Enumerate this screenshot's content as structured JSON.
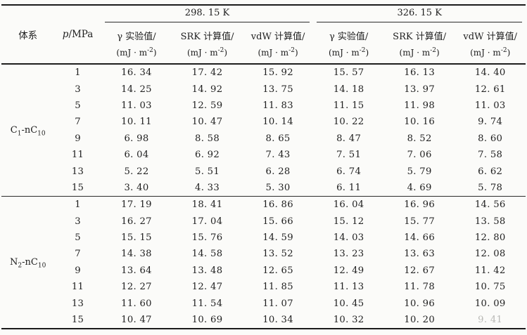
{
  "page": {
    "background": "#fbfbf9",
    "ink": "#1e1e1e",
    "faded_ink": "#b9b9b6"
  },
  "table": {
    "header": {
      "system": "体系",
      "pressure": {
        "symbol": "p",
        "unit": "/MPa"
      },
      "unit_line": {
        "pre": "(mJ · m",
        "sup": "-2",
        "post": ")"
      },
      "groups": [
        {
          "temp": "298. 15 K",
          "cols": [
            "γ 实验值/",
            "SRK 计算值/",
            "vdW 计算值/"
          ]
        },
        {
          "temp": "326. 15 K",
          "cols": [
            "γ 实验值/",
            "SRK 计算值/",
            "vdW 计算值/"
          ]
        }
      ]
    },
    "blocks": [
      {
        "system": {
          "b1": "C",
          "s1": "1",
          "b2": "-nC",
          "s2": "10"
        },
        "rows": [
          {
            "p": "1",
            "v": [
              "16. 34",
              "17. 42",
              "15. 92",
              "15. 57",
              "16. 13",
              "14. 40"
            ]
          },
          {
            "p": "3",
            "v": [
              "14. 25",
              "14. 92",
              "13. 75",
              "14. 18",
              "13. 97",
              "12. 61"
            ]
          },
          {
            "p": "5",
            "v": [
              "11. 03",
              "12. 59",
              "11. 83",
              "11. 15",
              "11. 98",
              "11. 03"
            ]
          },
          {
            "p": "7",
            "v": [
              "10. 11",
              "10. 47",
              "10. 14",
              "10. 22",
              "10. 16",
              "9. 74"
            ]
          },
          {
            "p": "9",
            "v": [
              "6. 98",
              "8. 58",
              "8. 65",
              "8. 47",
              "8. 52",
              "8. 60"
            ]
          },
          {
            "p": "11",
            "v": [
              "6. 04",
              "6. 92",
              "7. 43",
              "7. 51",
              "7. 06",
              "7. 58"
            ]
          },
          {
            "p": "13",
            "v": [
              "5. 22",
              "5. 51",
              "6. 28",
              "6. 74",
              "5. 79",
              "6. 62"
            ]
          },
          {
            "p": "15",
            "v": [
              "3. 40",
              "4. 33",
              "5. 30",
              "6. 11",
              "4. 69",
              "5. 78"
            ]
          }
        ]
      },
      {
        "system": {
          "b1": "N",
          "s1": "2",
          "b2": "-nC",
          "s2": "10"
        },
        "rows": [
          {
            "p": "1",
            "v": [
              "17. 19",
              "18. 41",
              "16. 86",
              "16. 04",
              "16. 96",
              "14. 56"
            ]
          },
          {
            "p": "3",
            "v": [
              "16. 27",
              "17. 04",
              "15. 66",
              "15. 12",
              "15. 77",
              "13. 58"
            ]
          },
          {
            "p": "5",
            "v": [
              "15. 15",
              "15. 76",
              "14. 59",
              "14. 03",
              "14. 66",
              "12. 80"
            ]
          },
          {
            "p": "7",
            "v": [
              "14. 38",
              "14. 58",
              "13. 52",
              "13. 23",
              "13. 63",
              "12. 08"
            ]
          },
          {
            "p": "9",
            "v": [
              "13. 64",
              "13. 48",
              "12. 65",
              "12. 49",
              "12. 67",
              "11. 42"
            ]
          },
          {
            "p": "11",
            "v": [
              "12. 27",
              "12. 47",
              "11. 85",
              "11. 13",
              "11. 78",
              "10. 75"
            ]
          },
          {
            "p": "13",
            "v": [
              "11. 60",
              "11. 54",
              "11. 07",
              "10. 45",
              "10. 96",
              "10. 09"
            ]
          },
          {
            "p": "15",
            "v": [
              "10. 47",
              "10. 69",
              "10. 34",
              "10. 32",
              "10. 20",
              "9. 41"
            ]
          }
        ]
      }
    ]
  },
  "chart_data": {
    "type": "table",
    "columns": [
      "体系",
      "p/MPa",
      "298.15 K γ 实验值/(mJ·m⁻²)",
      "298.15 K SRK 计算值/(mJ·m⁻²)",
      "298.15 K vdW 计算值/(mJ·m⁻²)",
      "326.15 K γ 实验值/(mJ·m⁻²)",
      "326.15 K SRK 计算值/(mJ·m⁻²)",
      "326.15 K vdW 计算值/(mJ·m⁻²)"
    ],
    "rows": [
      [
        "C1-nC10",
        1,
        16.34,
        17.42,
        15.92,
        15.57,
        16.13,
        14.4
      ],
      [
        "C1-nC10",
        3,
        14.25,
        14.92,
        13.75,
        14.18,
        13.97,
        12.61
      ],
      [
        "C1-nC10",
        5,
        11.03,
        12.59,
        11.83,
        11.15,
        11.98,
        11.03
      ],
      [
        "C1-nC10",
        7,
        10.11,
        10.47,
        10.14,
        10.22,
        10.16,
        9.74
      ],
      [
        "C1-nC10",
        9,
        6.98,
        8.58,
        8.65,
        8.47,
        8.52,
        8.6
      ],
      [
        "C1-nC10",
        11,
        6.04,
        6.92,
        7.43,
        7.51,
        7.06,
        7.58
      ],
      [
        "C1-nC10",
        13,
        5.22,
        5.51,
        6.28,
        6.74,
        5.79,
        6.62
      ],
      [
        "C1-nC10",
        15,
        3.4,
        4.33,
        5.3,
        6.11,
        4.69,
        5.78
      ],
      [
        "N2-nC10",
        1,
        17.19,
        18.41,
        16.86,
        16.04,
        16.96,
        14.56
      ],
      [
        "N2-nC10",
        3,
        16.27,
        17.04,
        15.66,
        15.12,
        15.77,
        13.58
      ],
      [
        "N2-nC10",
        5,
        15.15,
        15.76,
        14.59,
        14.03,
        14.66,
        12.8
      ],
      [
        "N2-nC10",
        7,
        14.38,
        14.58,
        13.52,
        13.23,
        13.63,
        12.08
      ],
      [
        "N2-nC10",
        9,
        13.64,
        13.48,
        12.65,
        12.49,
        12.67,
        11.42
      ],
      [
        "N2-nC10",
        11,
        12.27,
        12.47,
        11.85,
        11.13,
        11.78,
        10.75
      ],
      [
        "N2-nC10",
        13,
        11.6,
        11.54,
        11.07,
        10.45,
        10.96,
        10.09
      ],
      [
        "N2-nC10",
        15,
        10.47,
        10.69,
        10.34,
        10.32,
        10.2,
        9.41
      ]
    ]
  }
}
